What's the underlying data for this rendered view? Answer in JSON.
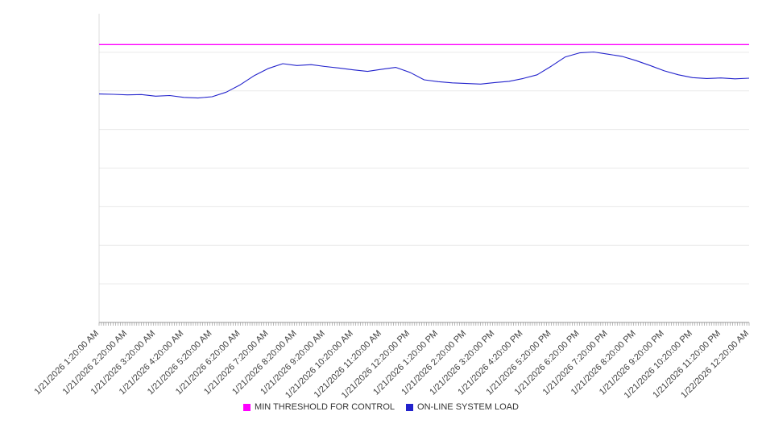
{
  "chart_data": {
    "type": "line",
    "title": "",
    "xlabel": "",
    "ylabel": "",
    "ylim": [
      0,
      100
    ],
    "y_gridline_step": 12.5,
    "y_axis_labels_visible": false,
    "grid": true,
    "legend_position": "bottom",
    "sample_interval_minutes": 30,
    "x_labels": [
      "1/21/2026 1:20:00 AM",
      "1/21/2026 2:20:00 AM",
      "1/21/2026 3:20:00 AM",
      "1/21/2026 4:20:00 AM",
      "1/21/2026 5:20:00 AM",
      "1/21/2026 6:20:00 AM",
      "1/21/2026 7:20:00 AM",
      "1/21/2026 8:20:00 AM",
      "1/21/2026 9:20:00 AM",
      "1/21/2026 10:20:00 AM",
      "1/21/2026 11:20:00 AM",
      "1/21/2026 12:20:00 PM",
      "1/21/2026 1:20:00 PM",
      "1/21/2026 2:20:00 PM",
      "1/21/2026 3:20:00 PM",
      "1/21/2026 4:20:00 PM",
      "1/21/2026 5:20:00 PM",
      "1/21/2026 6:20:00 PM",
      "1/21/2026 7:20:00 PM",
      "1/21/2026 8:20:00 PM",
      "1/21/2026 9:20:00 PM",
      "1/21/2026 10:20:00 PM",
      "1/21/2026 11:20:00 PM",
      "1/22/2026 12:20:00 AM"
    ],
    "series": [
      {
        "name": "MIN THRESHOLD FOR CONTROL",
        "color": "#ff00ff",
        "type": "constant",
        "value": 90
      },
      {
        "name": "ON-LINE SYSTEM LOAD",
        "color": "#2222cc",
        "type": "line",
        "values": [
          74.0,
          73.9,
          73.7,
          73.8,
          73.3,
          73.5,
          72.9,
          72.7,
          73.1,
          74.6,
          77.0,
          80.0,
          82.3,
          83.8,
          83.2,
          83.5,
          82.9,
          82.4,
          81.8,
          81.3,
          82.0,
          82.6,
          81.0,
          78.6,
          78.0,
          77.6,
          77.4,
          77.2,
          77.7,
          78.1,
          79.0,
          80.2,
          83.0,
          86.0,
          87.3,
          87.6,
          86.9,
          86.2,
          84.8,
          83.2,
          81.5,
          80.2,
          79.3,
          79.0,
          79.2,
          78.9,
          79.1
        ]
      }
    ]
  },
  "legend": {
    "items": [
      {
        "label": "MIN THRESHOLD FOR CONTROL",
        "color": "#ff00ff"
      },
      {
        "label": "ON-LINE SYSTEM LOAD",
        "color": "#2222cc"
      }
    ]
  }
}
